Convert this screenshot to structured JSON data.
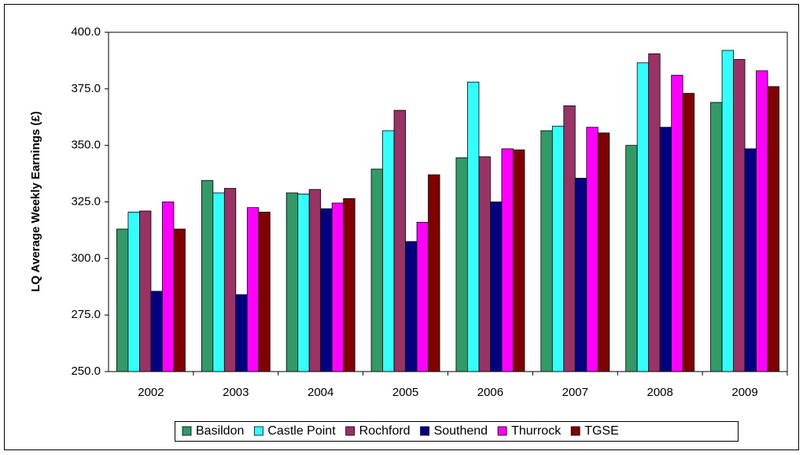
{
  "chart_data": {
    "type": "bar",
    "y_label": "LQ Average Weekly Earnings (£)",
    "categories": [
      "2002",
      "2003",
      "2004",
      "2005",
      "2006",
      "2007",
      "2008",
      "2009"
    ],
    "series": [
      {
        "name": "Basildon",
        "color": "#339966",
        "values": [
          313,
          334.5,
          329,
          339.5,
          344.5,
          356.5,
          350,
          369
        ]
      },
      {
        "name": "Castle Point",
        "color": "#33ffff",
        "values": [
          320.5,
          329,
          328.5,
          356.5,
          378,
          358.5,
          386.5,
          392
        ]
      },
      {
        "name": "Rochford",
        "color": "#993366",
        "values": [
          321,
          331,
          330.5,
          365.5,
          345,
          367.5,
          390.5,
          388
        ]
      },
      {
        "name": "Southend",
        "color": "#000080",
        "values": [
          285.5,
          284,
          322,
          307.5,
          325,
          335.5,
          358,
          348.5
        ]
      },
      {
        "name": "Thurrock",
        "color": "#ff00ff",
        "values": [
          325,
          322.5,
          324.5,
          316,
          348.5,
          358,
          381,
          383
        ]
      },
      {
        "name": "TGSE",
        "color": "#800000",
        "values": [
          313,
          320.5,
          326.5,
          337,
          348,
          355.5,
          373,
          376
        ]
      }
    ],
    "ylim": [
      250,
      400
    ],
    "yticks": [
      {
        "value": 250,
        "label": "250.0"
      },
      {
        "value": 275,
        "label": "275.0"
      },
      {
        "value": 300,
        "label": "300.0"
      },
      {
        "value": 325,
        "label": "325.0"
      },
      {
        "value": 350,
        "label": "350.0"
      },
      {
        "value": 375,
        "label": "375.0"
      },
      {
        "value": 400,
        "label": "400.0"
      }
    ],
    "legend": "bottom"
  }
}
